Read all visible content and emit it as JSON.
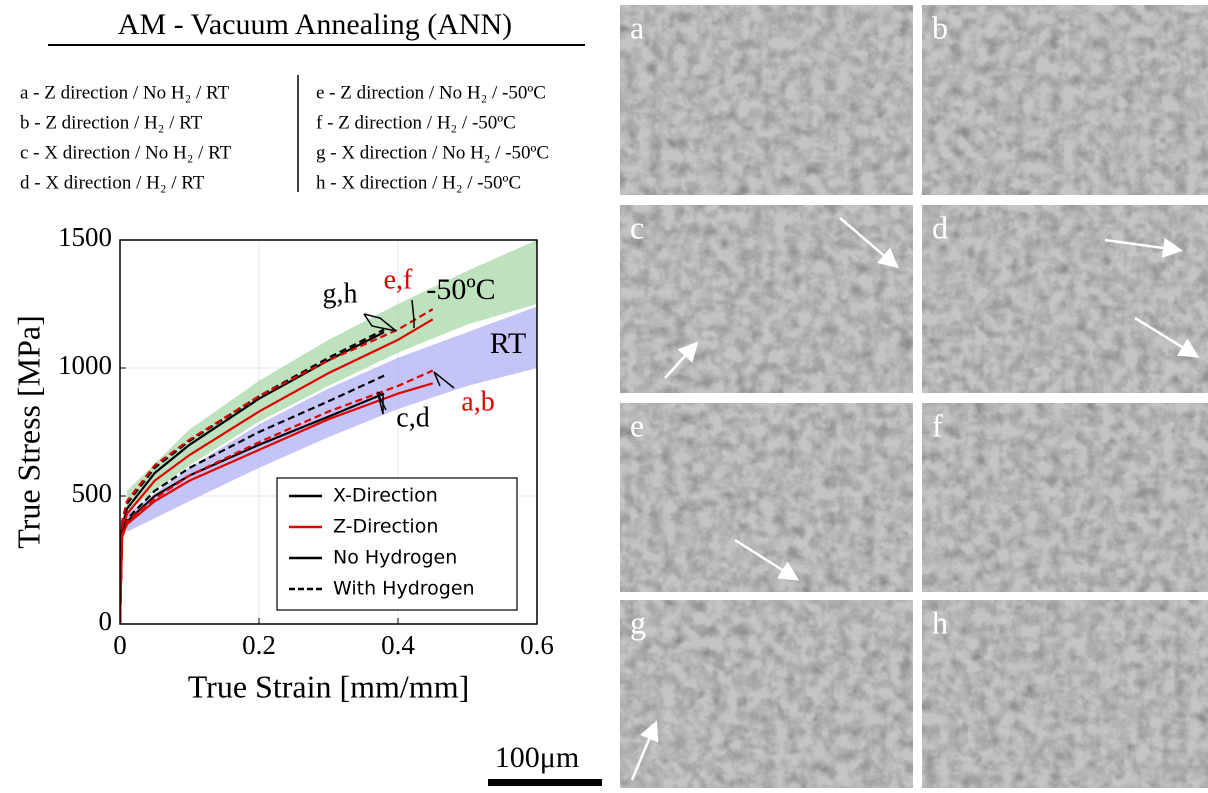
{
  "header": {
    "title": "AM - Vacuum Annealing (ANN)"
  },
  "conditions": [
    "a - Z direction / No H₂ / RT",
    "b - Z direction / H₂ / RT",
    "c - X direction / No H₂ / RT",
    "d - X direction / H₂ / RT",
    "e - Z direction / No H₂ / -50ºC",
    "f - Z direction / H₂ / -50ºC",
    "g - X direction / No H₂ / -50ºC",
    "h - X direction / H₂ / -50ºC"
  ],
  "chart_data": {
    "type": "line",
    "x_label": "True Strain [mm/mm]",
    "y_label": "True Stress [MPa]",
    "xlim": [
      0,
      0.6
    ],
    "ylim": [
      0,
      1500
    ],
    "xticks": [
      0,
      0.2,
      0.4,
      0.6
    ],
    "yticks": [
      0,
      500,
      1000,
      1500
    ],
    "grid": true,
    "bands": [
      {
        "color": "#a8d8a8",
        "x": [
          0.01,
          0.1,
          0.2,
          0.3,
          0.4,
          0.5,
          0.6
        ],
        "lower": [
          440,
          620,
          790,
          930,
          1060,
          1170,
          1250
        ],
        "upper": [
          520,
          760,
          950,
          1110,
          1250,
          1380,
          1500
        ]
      },
      {
        "color": "#b0b0f4",
        "x": [
          0.01,
          0.1,
          0.2,
          0.3,
          0.4,
          0.5,
          0.6
        ],
        "lower": [
          360,
          480,
          610,
          730,
          840,
          930,
          1000
        ],
        "upper": [
          430,
          610,
          780,
          920,
          1040,
          1140,
          1240
        ]
      }
    ],
    "series": [
      {
        "color": "#000000",
        "dashed": false,
        "x": [
          0,
          0.003,
          0.01,
          0.05,
          0.1,
          0.2,
          0.3,
          0.38
        ],
        "values": [
          0,
          380,
          450,
          590,
          700,
          880,
          1030,
          1140
        ]
      },
      {
        "color": "#000000",
        "dashed": true,
        "x": [
          0,
          0.003,
          0.01,
          0.05,
          0.1,
          0.2,
          0.3,
          0.38
        ],
        "values": [
          0,
          400,
          470,
          610,
          715,
          890,
          1040,
          1150
        ]
      },
      {
        "color": "#e00000",
        "dashed": false,
        "x": [
          0,
          0.003,
          0.01,
          0.05,
          0.1,
          0.2,
          0.3,
          0.4,
          0.45
        ],
        "values": [
          0,
          370,
          430,
          560,
          660,
          830,
          980,
          1110,
          1190
        ]
      },
      {
        "color": "#e00000",
        "dashed": true,
        "x": [
          0,
          0.003,
          0.01,
          0.05,
          0.1,
          0.2,
          0.3,
          0.4,
          0.45
        ],
        "values": [
          0,
          400,
          480,
          620,
          720,
          890,
          1030,
          1150,
          1230
        ]
      },
      {
        "color": "#000000",
        "dashed": false,
        "x": [
          0,
          0.003,
          0.01,
          0.05,
          0.1,
          0.2,
          0.3,
          0.38
        ],
        "values": [
          0,
          350,
          400,
          500,
          580,
          700,
          810,
          900
        ]
      },
      {
        "color": "#000000",
        "dashed": true,
        "x": [
          0,
          0.003,
          0.01,
          0.05,
          0.1,
          0.2,
          0.3,
          0.38
        ],
        "values": [
          0,
          360,
          410,
          520,
          610,
          750,
          870,
          970
        ]
      },
      {
        "color": "#e00000",
        "dashed": false,
        "x": [
          0,
          0.003,
          0.01,
          0.05,
          0.1,
          0.2,
          0.3,
          0.4,
          0.45
        ],
        "values": [
          0,
          340,
          390,
          480,
          560,
          680,
          800,
          900,
          940
        ]
      },
      {
        "color": "#e00000",
        "dashed": true,
        "x": [
          0,
          0.003,
          0.01,
          0.05,
          0.1,
          0.2,
          0.3,
          0.4,
          0.45
        ],
        "values": [
          0,
          350,
          400,
          490,
          580,
          710,
          830,
          930,
          990
        ]
      }
    ],
    "annotations": [
      {
        "text": "g,h",
        "color": "#000000"
      },
      {
        "text": "e,f",
        "color": "#e00000"
      },
      {
        "text": "-50ºC",
        "color": "#000000"
      },
      {
        "text": "RT",
        "color": "#000000"
      },
      {
        "text": "c,d",
        "color": "#000000"
      },
      {
        "text": "a,b",
        "color": "#e00000"
      }
    ],
    "legend": [
      {
        "name": "X-Direction",
        "color": "#000000",
        "dashed": false
      },
      {
        "name": "Z-Direction",
        "color": "#e00000",
        "dashed": false
      },
      {
        "name": "No Hydrogen",
        "color": "#000000",
        "dashed": false
      },
      {
        "name": "With Hydrogen",
        "color": "#000000",
        "dashed": true
      }
    ]
  },
  "scale_bar": "100μm",
  "panels": [
    "a",
    "b",
    "c",
    "d",
    "e",
    "f",
    "g",
    "h"
  ]
}
